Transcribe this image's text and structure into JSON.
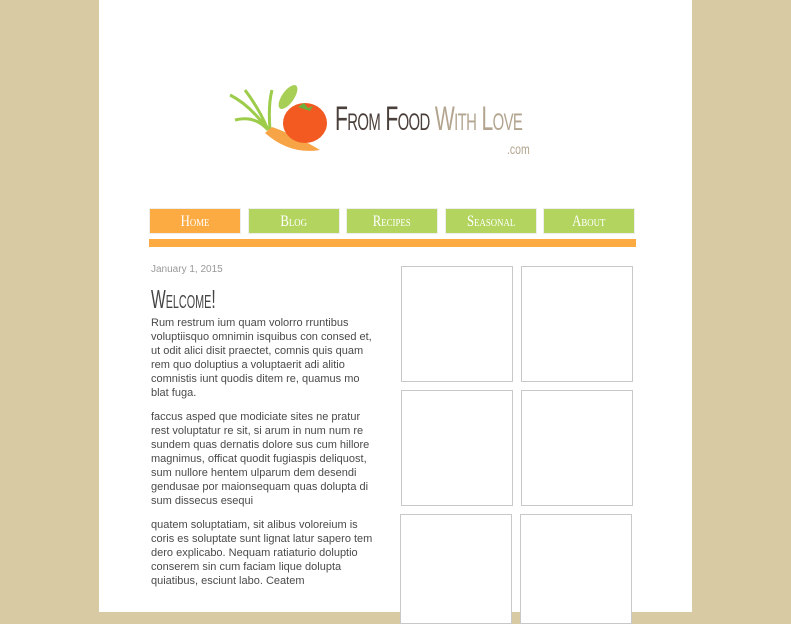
{
  "logo": {
    "text_part1": "From Food",
    "text_part2": " With Love",
    "suffix": ".com"
  },
  "colors": {
    "background": "#d8caa3",
    "nav_active": "#fbab42",
    "nav": "#b3d560",
    "accent_bar": "#fbab42"
  },
  "nav": [
    {
      "label": "Home",
      "active": true
    },
    {
      "label": "Blog"
    },
    {
      "label": "Recipes"
    },
    {
      "label": "Seasonal"
    },
    {
      "label": "About"
    }
  ],
  "post": {
    "date": "January 1, 2015",
    "title": "Welcome!",
    "paragraphs": [
      "Rum restrum ium quam volorro rruntibus voluptiisquo omnimin isquibus con consed et, ut odit alici disit praectet, comnis quis quam rem quo doluptius a voluptaerit adi alitio comnistis iunt quodis ditem re, quamus mo blat fuga.",
      "faccus asped que modiciate sites ne pratur rest voluptatur re sit, si arum in num num re sundem quas dernatis dolore sus cum hillore magnimus, officat quodit fugiaspis deliquost, sum nullore hentem ulparum dem desendi gendusae por maionsequam quas dolupta di sum dissecus esequi",
      "quatem soluptatiam, sit alibus voloreium is coris es soluptate sunt lignat latur sapero tem dero explicabo. Nequam ratiaturio doluptio conserem sin cum faciam lique dolupta quiatibus, esciunt labo. Ceatem"
    ]
  }
}
